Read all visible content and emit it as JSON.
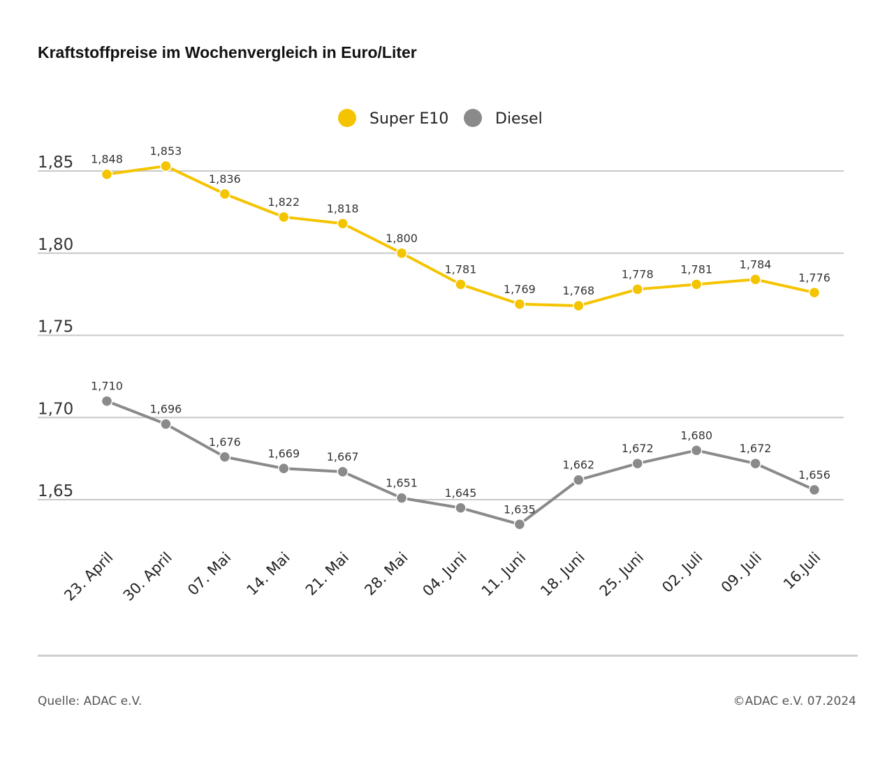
{
  "header": {
    "title": "Kraftstoffpreise im Wochenvergleich in Euro/Liter"
  },
  "footer": {
    "source": "Quelle: ADAC e.V.",
    "copyright": "©ADAC e.V. 07.2024"
  },
  "colors": {
    "super": "#f5c400",
    "diesel": "#8a8a8a",
    "grid": "#c8c8c8"
  },
  "chart_data": {
    "type": "line",
    "title": "Kraftstoffpreise im Wochenvergleich in Euro/Liter",
    "xlabel": "",
    "ylabel": "",
    "ylim": [
      1.62,
      1.86
    ],
    "y_ticks": [
      1.85,
      1.8,
      1.75,
      1.7,
      1.65
    ],
    "y_tick_labels": [
      "1,85",
      "1,80",
      "1,75",
      "1,70",
      "1,65"
    ],
    "grid": true,
    "legend_position": "top-center",
    "categories": [
      "23. April",
      "30. April",
      "07. Mai",
      "14. Mai",
      "21. Mai",
      "28. Mai",
      "04. Juni",
      "11. Juni",
      "18. Juni",
      "25. Juni",
      "02. Juli",
      "09. Juli",
      "16.Juli"
    ],
    "series": [
      {
        "name": "Super E10",
        "color": "#f5c400",
        "values": [
          1.848,
          1.853,
          1.836,
          1.822,
          1.818,
          1.8,
          1.781,
          1.769,
          1.768,
          1.778,
          1.781,
          1.784,
          1.776
        ],
        "labels": [
          "1,848",
          "1,853",
          "1,836",
          "1,822",
          "1,818",
          "1,800",
          "1,781",
          "1,769",
          "1,768",
          "1,778",
          "1,781",
          "1,784",
          "1,776"
        ]
      },
      {
        "name": "Diesel",
        "color": "#8a8a8a",
        "values": [
          1.71,
          1.696,
          1.676,
          1.669,
          1.667,
          1.651,
          1.645,
          1.635,
          1.662,
          1.672,
          1.68,
          1.672,
          1.656
        ],
        "labels": [
          "1,710",
          "1,696",
          "1,676",
          "1,669",
          "1,667",
          "1,651",
          "1,645",
          "1,635",
          "1,662",
          "1,672",
          "1,680",
          "1,672",
          "1,656"
        ]
      }
    ]
  }
}
